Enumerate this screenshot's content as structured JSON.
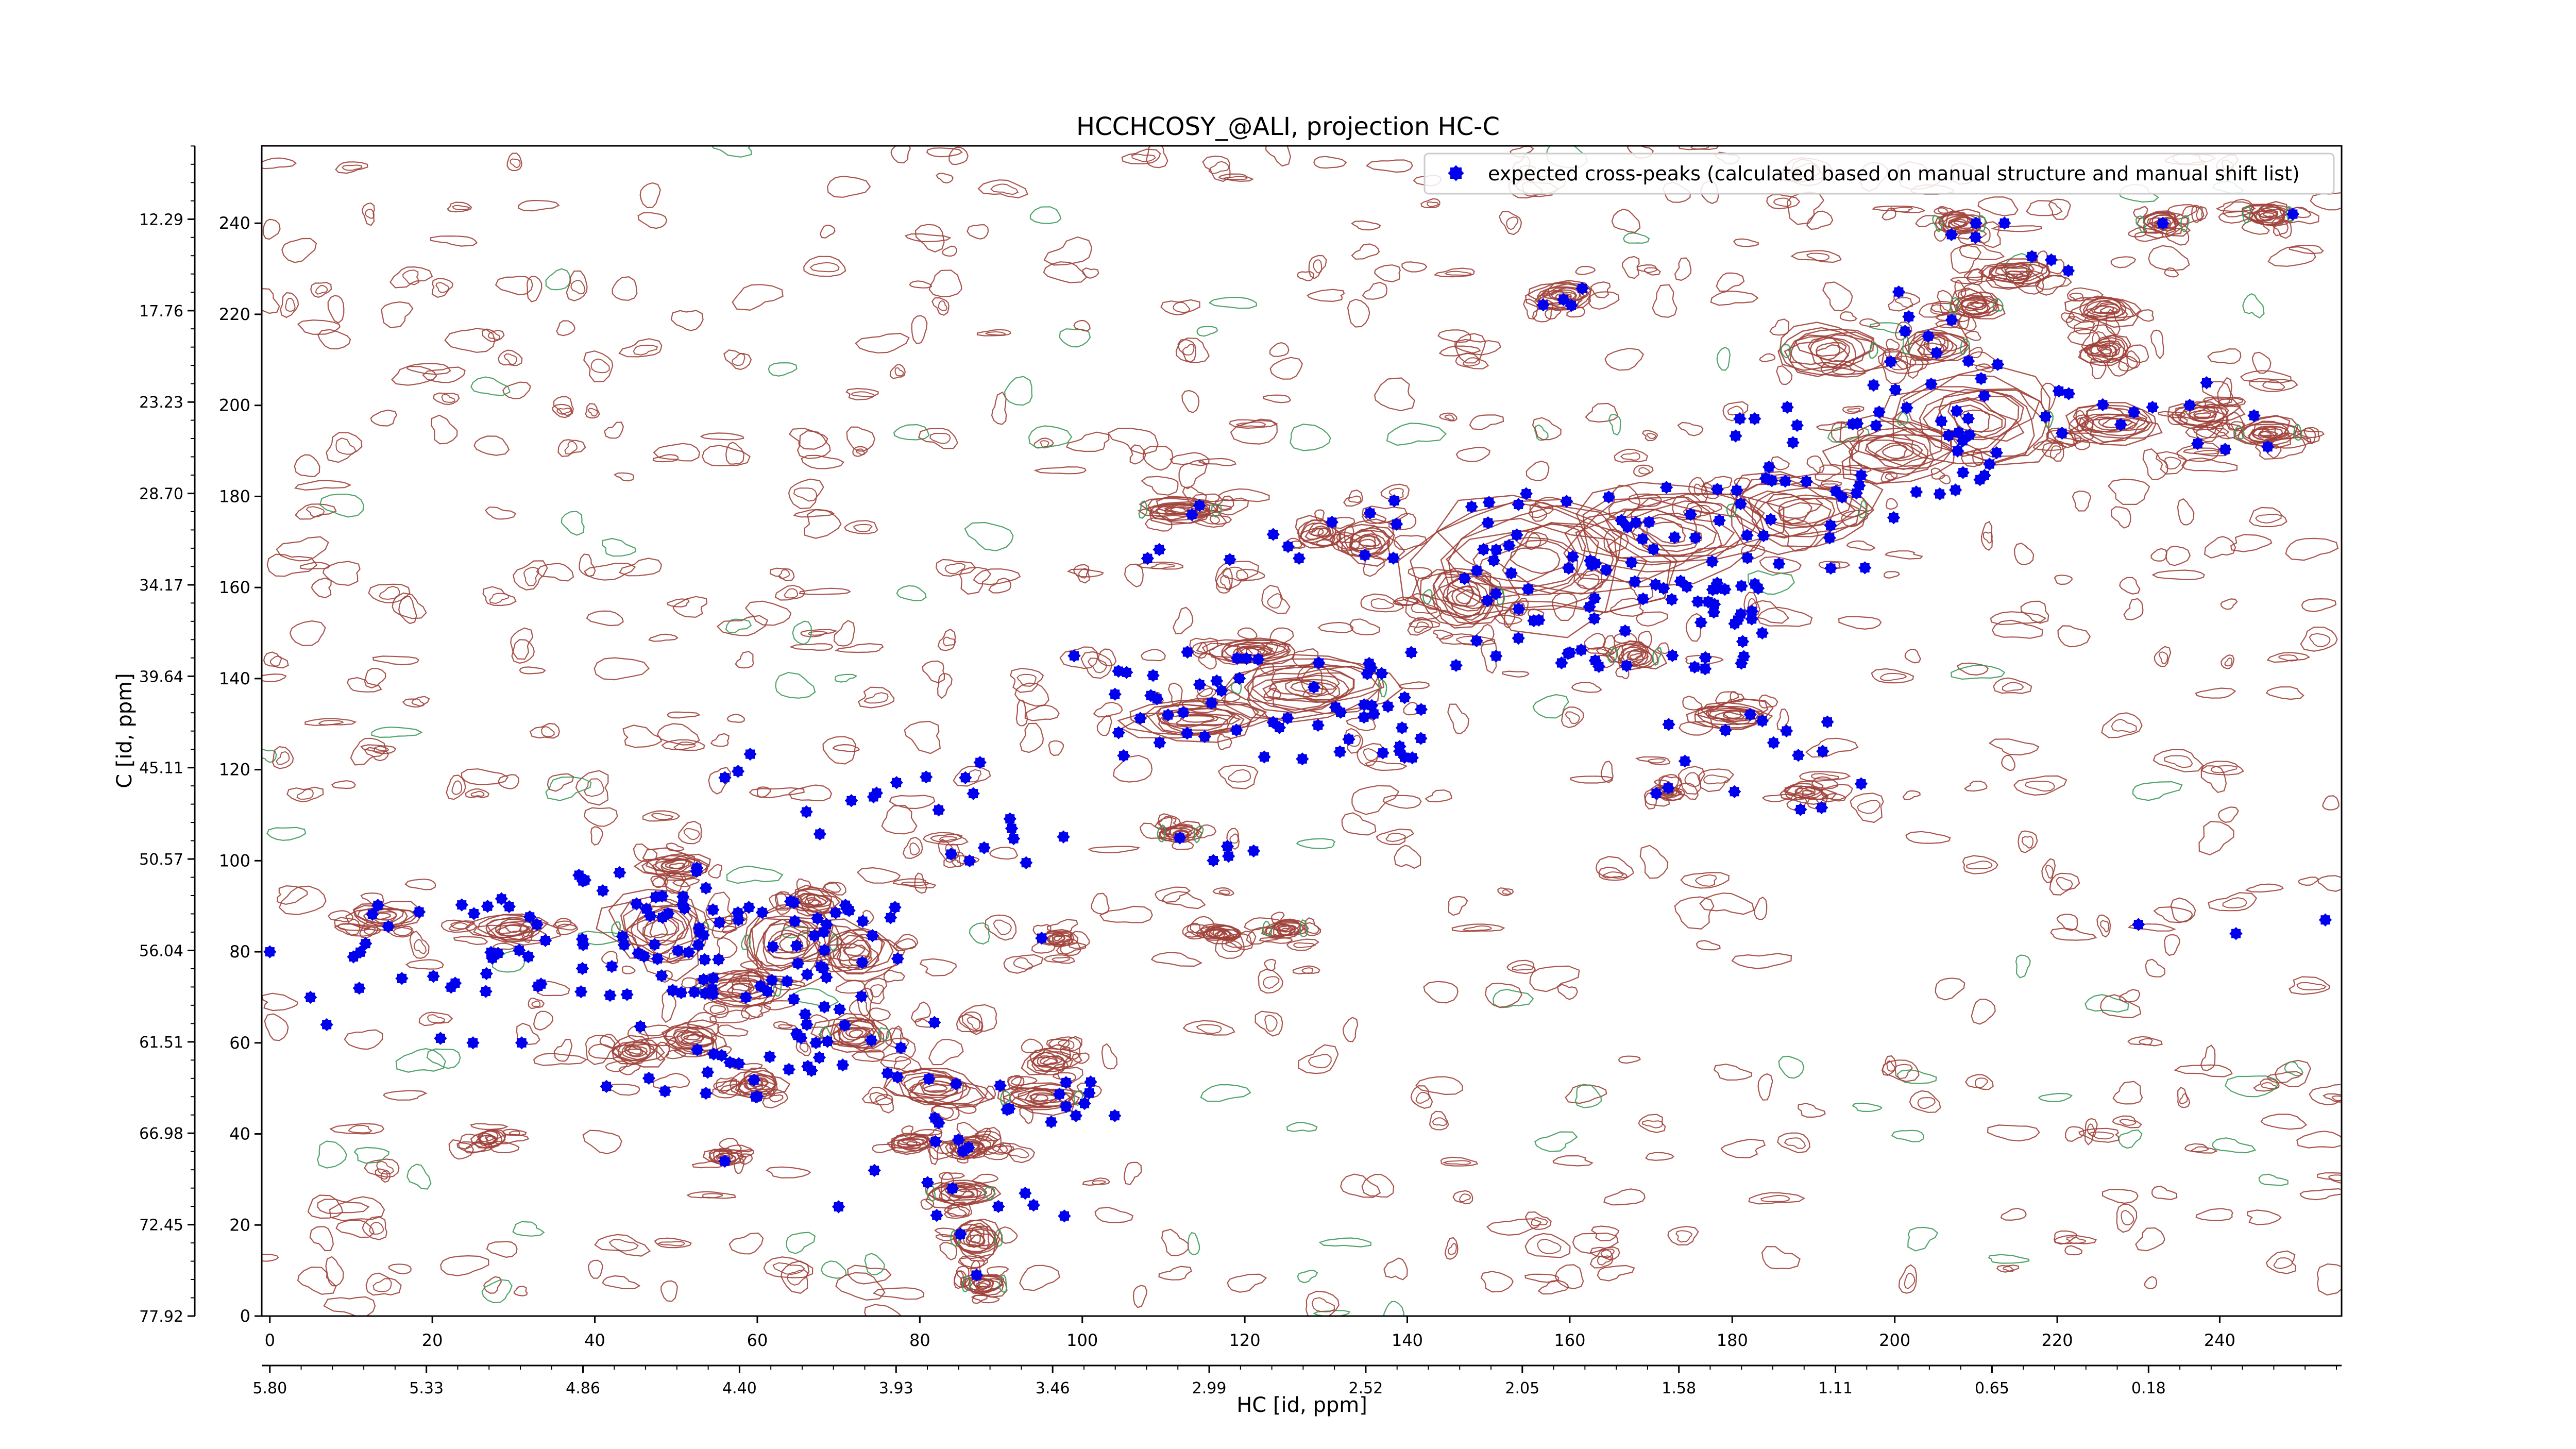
{
  "chart_data": {
    "type": "scatter",
    "title": "HCCHCOSY_@ALI, projection HC-C",
    "xlabel": "HC [id, ppm]",
    "ylabel": "C [id, ppm]",
    "xlim": [
      -1,
      255
    ],
    "ylim": [
      0,
      257
    ],
    "x_ticks": [
      0,
      20,
      40,
      60,
      80,
      100,
      120,
      140,
      160,
      180,
      200,
      220,
      240
    ],
    "x_ppm_ticks": {
      "positions": [
        0,
        19.27,
        38.54,
        57.81,
        77.08,
        96.35,
        115.62,
        134.89,
        154.16,
        173.43,
        192.7,
        211.97,
        231.24
      ],
      "labels": [
        "5.80",
        "5.33",
        "4.86",
        "4.40",
        "3.93",
        "3.46",
        "2.99",
        "2.52",
        "2.05",
        "1.58",
        "1.11",
        "0.65",
        "0.18"
      ]
    },
    "y_ticks": [
      0,
      20,
      40,
      60,
      80,
      100,
      120,
      140,
      160,
      180,
      200,
      220,
      240
    ],
    "y_ppm_ticks": {
      "positions": [
        0,
        20.07,
        40.15,
        60.22,
        80.29,
        100.37,
        120.44,
        140.51,
        160.58,
        180.66,
        200.73,
        220.8,
        240.88
      ],
      "labels": [
        "77.92",
        "72.45",
        "66.98",
        "61.51",
        "56.04",
        "50.57",
        "45.11",
        "39.64",
        "34.17",
        "28.70",
        "23.23",
        "17.76",
        "12.29"
      ]
    },
    "legend": {
      "placement": "top-right",
      "entries": [
        "expected cross-peaks (calculated based on manual structure and manual shift list)"
      ]
    },
    "colors": {
      "peaks": "#0000ee",
      "contour_positive": "#a0413a",
      "contour_negative": "#3c9a5a"
    },
    "contour_regions": [
      {
        "x": 112,
        "y": 177,
        "sx": 5,
        "sy": 2.5,
        "a": 1
      },
      {
        "x": 135,
        "y": 170,
        "sx": 4,
        "sy": 4,
        "a": 0.8
      },
      {
        "x": 129,
        "y": 172,
        "sx": 3,
        "sy": 3,
        "a": 0.6
      },
      {
        "x": 156,
        "y": 166,
        "sx": 14,
        "sy": 15,
        "a": 1
      },
      {
        "x": 172,
        "y": 172,
        "sx": 13,
        "sy": 10,
        "a": 1
      },
      {
        "x": 188,
        "y": 177,
        "sx": 9,
        "sy": 8,
        "a": 0.9
      },
      {
        "x": 200,
        "y": 190,
        "sx": 8,
        "sy": 6,
        "a": 0.9
      },
      {
        "x": 210,
        "y": 197,
        "sx": 10,
        "sy": 10,
        "a": 1
      },
      {
        "x": 192,
        "y": 212,
        "sx": 6,
        "sy": 6,
        "a": 0.9
      },
      {
        "x": 205,
        "y": 213,
        "sx": 4,
        "sy": 4,
        "a": 0.9
      },
      {
        "x": 227,
        "y": 196,
        "sx": 6,
        "sy": 4,
        "a": 0.9
      },
      {
        "x": 238,
        "y": 198,
        "sx": 4,
        "sy": 3,
        "a": 0.9
      },
      {
        "x": 246,
        "y": 194,
        "sx": 4,
        "sy": 3,
        "a": 0.9
      },
      {
        "x": 210,
        "y": 222,
        "sx": 3,
        "sy": 3,
        "a": 1
      },
      {
        "x": 215,
        "y": 229,
        "sx": 4,
        "sy": 3,
        "a": 0.8
      },
      {
        "x": 226,
        "y": 221,
        "sx": 4,
        "sy": 3,
        "a": 0.8
      },
      {
        "x": 226,
        "y": 212,
        "sx": 3,
        "sy": 3,
        "a": 0.8
      },
      {
        "x": 208,
        "y": 240,
        "sx": 3,
        "sy": 2.5,
        "a": 1
      },
      {
        "x": 233,
        "y": 240,
        "sx": 3,
        "sy": 2.5,
        "a": 1
      },
      {
        "x": 246,
        "y": 242,
        "sx": 3,
        "sy": 2.5,
        "a": 1
      },
      {
        "x": 159,
        "y": 224,
        "sx": 4,
        "sy": 3,
        "a": 1
      },
      {
        "x": 147,
        "y": 158,
        "sx": 5,
        "sy": 7,
        "a": 1
      },
      {
        "x": 168,
        "y": 145,
        "sx": 3,
        "sy": 3,
        "a": 0.9
      },
      {
        "x": 180,
        "y": 132,
        "sx": 5,
        "sy": 3,
        "a": 1
      },
      {
        "x": 114,
        "y": 131,
        "sx": 9,
        "sy": 4,
        "a": 1
      },
      {
        "x": 128,
        "y": 138,
        "sx": 10,
        "sy": 7,
        "a": 1
      },
      {
        "x": 121,
        "y": 146,
        "sx": 5,
        "sy": 3,
        "a": 0.8
      },
      {
        "x": 112,
        "y": 106,
        "sx": 2.5,
        "sy": 2,
        "a": 0.9
      },
      {
        "x": 117,
        "y": 84,
        "sx": 2.5,
        "sy": 2,
        "a": 1
      },
      {
        "x": 125,
        "y": 85,
        "sx": 2.5,
        "sy": 2,
        "a": 1
      },
      {
        "x": 48,
        "y": 85,
        "sx": 6,
        "sy": 8,
        "a": 1
      },
      {
        "x": 50,
        "y": 99,
        "sx": 4,
        "sy": 3,
        "a": 0.8
      },
      {
        "x": 58,
        "y": 72,
        "sx": 5,
        "sy": 4,
        "a": 1
      },
      {
        "x": 64,
        "y": 82,
        "sx": 6,
        "sy": 8,
        "a": 1
      },
      {
        "x": 72,
        "y": 80,
        "sx": 5,
        "sy": 6,
        "a": 0.9
      },
      {
        "x": 67,
        "y": 91,
        "sx": 3,
        "sy": 3,
        "a": 0.8
      },
      {
        "x": 72,
        "y": 62,
        "sx": 4,
        "sy": 4,
        "a": 1
      },
      {
        "x": 82,
        "y": 50,
        "sx": 6,
        "sy": 4,
        "a": 1
      },
      {
        "x": 95,
        "y": 48,
        "sx": 5,
        "sy": 3,
        "a": 1
      },
      {
        "x": 86,
        "y": 37,
        "sx": 3,
        "sy": 2.5,
        "a": 1
      },
      {
        "x": 85,
        "y": 27,
        "sx": 4,
        "sy": 3,
        "a": 0.9
      },
      {
        "x": 87,
        "y": 17,
        "sx": 3,
        "sy": 4,
        "a": 1
      },
      {
        "x": 88,
        "y": 7,
        "sx": 2.5,
        "sy": 2.5,
        "a": 1
      },
      {
        "x": 52,
        "y": 61,
        "sx": 4,
        "sy": 3,
        "a": 0.8
      },
      {
        "x": 60,
        "y": 51,
        "sx": 3,
        "sy": 3,
        "a": 0.8
      },
      {
        "x": 45,
        "y": 58,
        "sx": 3,
        "sy": 3,
        "a": 0.7
      },
      {
        "x": 30,
        "y": 85,
        "sx": 5,
        "sy": 3,
        "a": 0.7
      },
      {
        "x": 14,
        "y": 88,
        "sx": 4,
        "sy": 3,
        "a": 0.6
      },
      {
        "x": 97,
        "y": 83,
        "sx": 2,
        "sy": 2,
        "a": 0.5
      },
      {
        "x": 56,
        "y": 35,
        "sx": 2,
        "sy": 2,
        "a": 0.7
      },
      {
        "x": 27,
        "y": 39,
        "sx": 2,
        "sy": 2,
        "a": 0.5
      },
      {
        "x": 189,
        "y": 115,
        "sx": 3,
        "sy": 2,
        "a": 0.6
      },
      {
        "x": 172,
        "y": 115,
        "sx": 2,
        "sy": 1.5,
        "a": 0.5
      },
      {
        "x": 96,
        "y": 56,
        "sx": 3,
        "sy": 3,
        "a": 0.7
      },
      {
        "x": 79,
        "y": 38,
        "sx": 3,
        "sy": 2,
        "a": 0.7
      }
    ],
    "peak_clusters": [
      {
        "x": [
          10,
          34
        ],
        "y": [
          70,
          92
        ],
        "n": 28
      },
      {
        "x": [
          38,
          56
        ],
        "y": [
          70,
          100
        ],
        "n": 50
      },
      {
        "x": [
          54,
          78
        ],
        "y": [
          66,
          92
        ],
        "n": 40
      },
      {
        "x": [
          40,
          68
        ],
        "y": [
          48,
          64
        ],
        "n": 20
      },
      {
        "x": [
          66,
          82
        ],
        "y": [
          52,
          66
        ],
        "n": 12
      },
      {
        "x": [
          80,
          104
        ],
        "y": [
          42,
          54
        ],
        "n": 14
      },
      {
        "x": [
          74,
          98
        ],
        "y": [
          20,
          40
        ],
        "n": 10
      },
      {
        "x": [
          56,
          98
        ],
        "y": [
          96,
          124
        ],
        "n": 22
      },
      {
        "x": [
          104,
          142
        ],
        "y": [
          122,
          146
        ],
        "n": 55
      },
      {
        "x": [
          106,
          142
        ],
        "y": [
          166,
          180
        ],
        "n": 14
      },
      {
        "x": [
          146,
          184
        ],
        "y": [
          142,
          182
        ],
        "n": 90
      },
      {
        "x": [
          180,
          200
        ],
        "y": [
          160,
          200
        ],
        "n": 25
      },
      {
        "x": [
          194,
          214
        ],
        "y": [
          180,
          210
        ],
        "n": 30
      },
      {
        "x": [
          218,
          246
        ],
        "y": [
          190,
          206
        ],
        "n": 14
      },
      {
        "x": [
          200,
          222
        ],
        "y": [
          208,
          242
        ],
        "n": 12
      },
      {
        "x": [
          156,
          162
        ],
        "y": [
          221,
          226
        ],
        "n": 4
      },
      {
        "x": [
          170,
          196
        ],
        "y": [
          108,
          136
        ],
        "n": 16
      },
      {
        "x": [
          116,
          125
        ],
        "y": [
          98,
          104
        ],
        "n": 3
      }
    ],
    "isolated_peaks": [
      [
        0,
        80
      ],
      [
        230,
        86
      ],
      [
        242,
        84
      ],
      [
        253,
        87
      ],
      [
        249,
        242
      ],
      [
        210,
        240
      ],
      [
        233,
        240
      ],
      [
        112,
        105
      ],
      [
        118,
        101
      ],
      [
        95,
        83
      ],
      [
        31,
        60
      ],
      [
        25,
        60
      ],
      [
        21,
        61
      ],
      [
        11,
        72
      ],
      [
        5,
        70
      ],
      [
        7,
        64
      ],
      [
        104,
        44
      ],
      [
        98,
        46
      ],
      [
        86,
        37
      ],
      [
        84,
        28
      ],
      [
        85,
        18
      ],
      [
        87,
        9
      ],
      [
        56,
        34
      ],
      [
        70,
        24
      ],
      [
        99,
        145
      ]
    ]
  }
}
